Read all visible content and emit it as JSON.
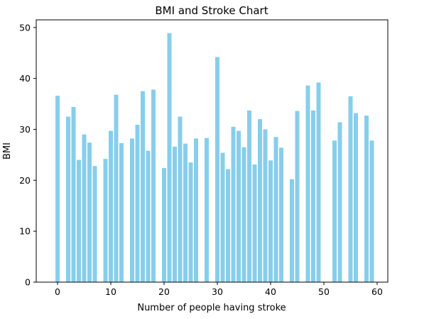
{
  "chart_data": {
    "type": "bar",
    "title": "BMI and Stroke Chart",
    "xlabel": "Number of people having stroke",
    "ylabel": "BMI",
    "xlim": [
      -4,
      62
    ],
    "ylim": [
      0,
      51.5
    ],
    "xticks": [
      0,
      10,
      20,
      30,
      40,
      50,
      60
    ],
    "yticks": [
      0,
      10,
      20,
      30,
      40,
      50
    ],
    "grid": false,
    "bar_color": "#87ceeb",
    "x": [
      0,
      2,
      3,
      4,
      5,
      6,
      7,
      9,
      10,
      11,
      12,
      14,
      15,
      16,
      17,
      18,
      20,
      21,
      22,
      23,
      24,
      25,
      26,
      28,
      30,
      31,
      32,
      33,
      34,
      35,
      36,
      37,
      38,
      39,
      40,
      41,
      42,
      44,
      45,
      47,
      48,
      49,
      52,
      53,
      55,
      56,
      58,
      59
    ],
    "values": [
      36.6,
      32.5,
      34.4,
      24.0,
      29.0,
      27.4,
      22.8,
      24.2,
      29.7,
      36.8,
      27.3,
      28.2,
      30.9,
      37.5,
      25.8,
      37.8,
      22.4,
      48.9,
      26.6,
      32.5,
      27.2,
      23.5,
      28.2,
      28.3,
      44.2,
      25.4,
      22.2,
      30.5,
      29.7,
      26.5,
      33.7,
      23.1,
      32.0,
      30.0,
      23.9,
      28.5,
      26.4,
      20.2,
      33.6,
      38.6,
      33.7,
      39.2,
      27.8,
      31.4,
      36.5,
      33.2,
      32.7,
      27.8
    ]
  }
}
